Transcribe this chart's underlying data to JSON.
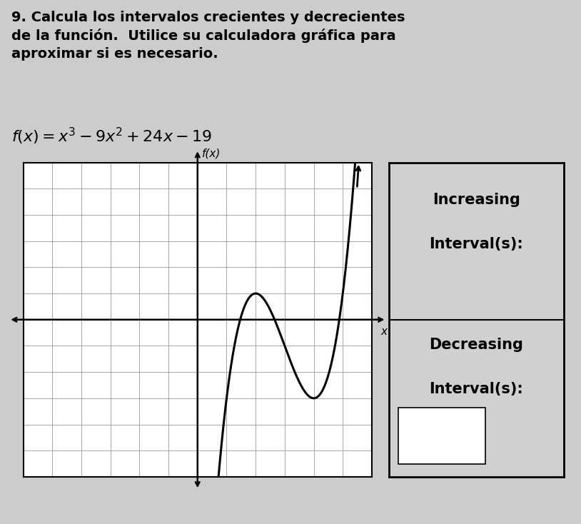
{
  "title_line1": "9. Calcula los intervalos crecientes y decrecientes",
  "title_line2": "de la función.  Utilice su calculadora gráfica para",
  "title_line3": "aproximar si es necesario.",
  "xlabel": "x",
  "ylabel": "f(x)",
  "xmin": -6,
  "xmax": 7,
  "ymin": -7,
  "ymax": 6,
  "x_axis_at": 0,
  "y_axis_at": 0,
  "grid_cols": 13,
  "grid_rows": 13,
  "grid_color": "#999999",
  "curve_color": "#000000",
  "background_color": "#cccccc",
  "graph_bg": "#d0d0d0",
  "box_bg": "#d0d0d0",
  "title_fontsize": 14,
  "func_fontsize": 15,
  "label_fontsize": 14
}
